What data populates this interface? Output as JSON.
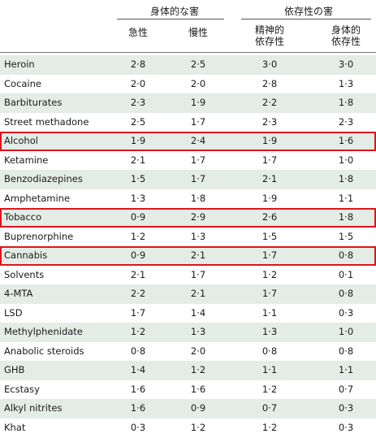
{
  "header": {
    "group1": "身体的な害",
    "group2": "依存性の害",
    "col1": "急性",
    "col2": "慢性",
    "col3": "精神的\n依存性",
    "col4": "身体的\n依存性"
  },
  "rows": [
    {
      "name": "Heroin",
      "v": [
        "2·8",
        "2·5",
        "3·0",
        "3·0"
      ],
      "highlight": false
    },
    {
      "name": "Cocaine",
      "v": [
        "2·0",
        "2·0",
        "2·8",
        "1·3"
      ],
      "highlight": false
    },
    {
      "name": "Barbiturates",
      "v": [
        "2·3",
        "1·9",
        "2·2",
        "1·8"
      ],
      "highlight": false
    },
    {
      "name": "Street methadone",
      "v": [
        "2·5",
        "1·7",
        "2·3",
        "2·3"
      ],
      "highlight": false
    },
    {
      "name": "Alcohol",
      "v": [
        "1·9",
        "2·4",
        "1·9",
        "1·6"
      ],
      "highlight": true
    },
    {
      "name": "Ketamine",
      "v": [
        "2·1",
        "1·7",
        "1·7",
        "1·0"
      ],
      "highlight": false
    },
    {
      "name": "Benzodiazepines",
      "v": [
        "1·5",
        "1·7",
        "2·1",
        "1·8"
      ],
      "highlight": false
    },
    {
      "name": "Amphetamine",
      "v": [
        "1·3",
        "1·8",
        "1·9",
        "1·1"
      ],
      "highlight": false
    },
    {
      "name": "Tobacco",
      "v": [
        "0·9",
        "2·9",
        "2·6",
        "1·8"
      ],
      "highlight": true
    },
    {
      "name": "Buprenorphine",
      "v": [
        "1·2",
        "1·3",
        "1·5",
        "1·5"
      ],
      "highlight": false
    },
    {
      "name": "Cannabis",
      "v": [
        "0·9",
        "2·1",
        "1·7",
        "0·8"
      ],
      "highlight": true
    },
    {
      "name": "Solvents",
      "v": [
        "2·1",
        "1·7",
        "1·2",
        "0·1"
      ],
      "highlight": false
    },
    {
      "name": "4-MTA",
      "v": [
        "2·2",
        "2·1",
        "1·7",
        "0·8"
      ],
      "highlight": false
    },
    {
      "name": "LSD",
      "v": [
        "1·7",
        "1·4",
        "1·1",
        "0·3"
      ],
      "highlight": false
    },
    {
      "name": "Methylphenidate",
      "v": [
        "1·2",
        "1·3",
        "1·3",
        "1·0"
      ],
      "highlight": false
    },
    {
      "name": "Anabolic steroids",
      "v": [
        "0·8",
        "2·0",
        "0·8",
        "0·8"
      ],
      "highlight": false
    },
    {
      "name": "GHB",
      "v": [
        "1·4",
        "1·2",
        "1·1",
        "1·1"
      ],
      "highlight": false
    },
    {
      "name": "Ecstasy",
      "v": [
        "1·6",
        "1·6",
        "1·2",
        "0·7"
      ],
      "highlight": false
    },
    {
      "name": "Alkyl nitrites",
      "v": [
        "1·6",
        "0·9",
        "0·7",
        "0·3"
      ],
      "highlight": false
    },
    {
      "name": "Khat",
      "v": [
        "0·3",
        "1·2",
        "1·2",
        "0·3"
      ],
      "highlight": false
    }
  ]
}
